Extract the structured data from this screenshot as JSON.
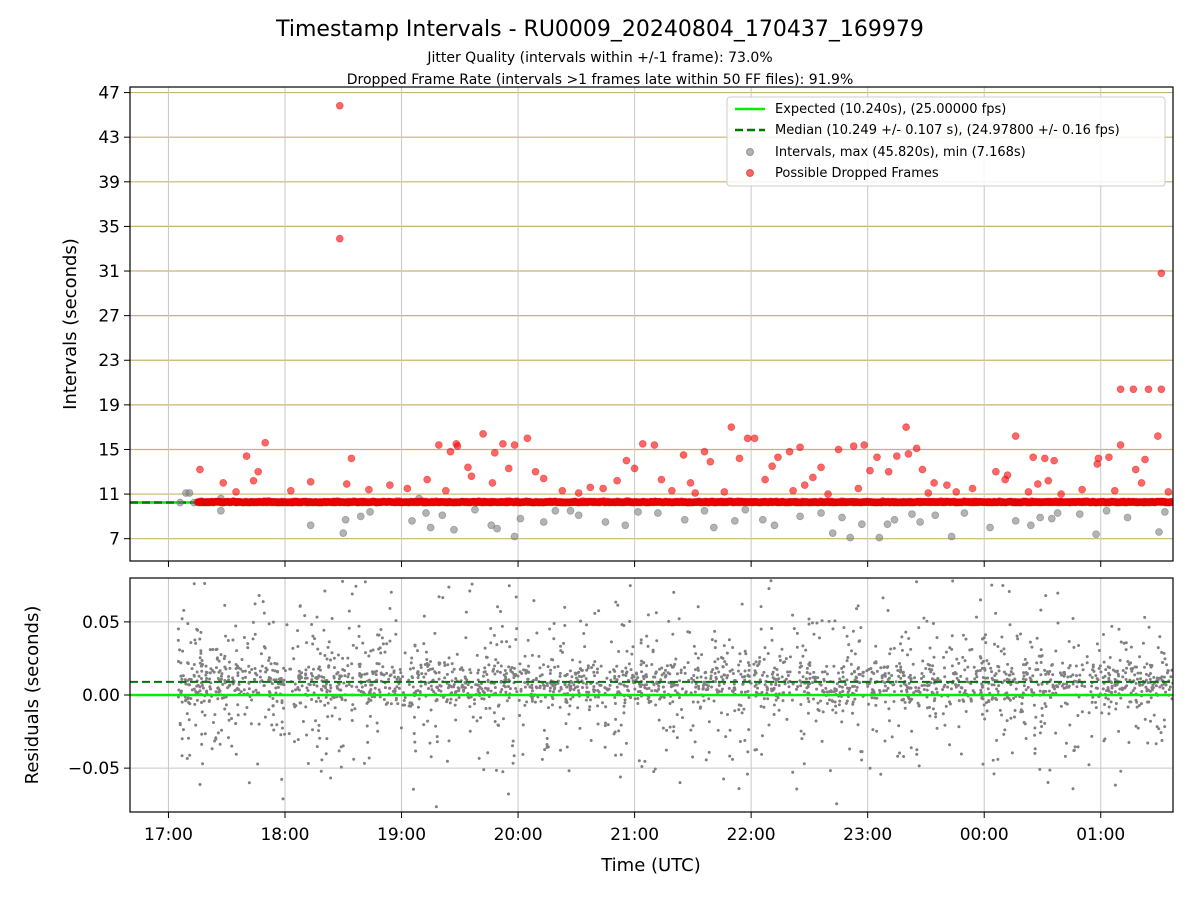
{
  "figure": {
    "title": "Timestamp Intervals - RU0009_20240804_170437_169979",
    "subtitle_1": "Jitter Quality (intervals within +/-1 frame): 73.0%",
    "subtitle_2": "Dropped Frame Rate (intervals >1 frames late within 50 FF files): 91.9%"
  },
  "colors": {
    "expected_line": "#00ee00",
    "median_line": "#007700",
    "intervals_points": "#808080",
    "dropped_points": "#ff0000",
    "top_grid": "#c8b46e",
    "vertical_grid": "#c8c8c8",
    "bottom_grid": "#c8c8c8"
  },
  "chart_data": [
    {
      "type": "scatter",
      "panel": "intervals",
      "ylabel": "Intervals (seconds)",
      "xlabel": "",
      "x_ticks": [
        "17:00",
        "18:00",
        "19:00",
        "20:00",
        "21:00",
        "22:00",
        "23:00",
        "00:00",
        "01:00"
      ],
      "x_range_hours": [
        16.67,
        25.62
      ],
      "y_ticks": [
        "7",
        "11",
        "15",
        "19",
        "23",
        "27",
        "31",
        "35",
        "39",
        "43",
        "47"
      ],
      "ylim": [
        5.0,
        47.5
      ],
      "grid": "on",
      "legend_position": "top-right",
      "legend": {
        "expected": "Expected (10.240s), (25.00000 fps)",
        "median": "Median (10.249 +/- 0.107 s), (24.97800 +/- 0.16 fps)",
        "intervals": "Intervals, max (45.820s), min (7.168s)",
        "dropped": "Possible Dropped Frames"
      },
      "expected_value": 10.24,
      "median_value": 10.249,
      "dropped_frames": [
        [
          18.47,
          45.82
        ],
        [
          18.47,
          33.9
        ],
        [
          25.52,
          30.8
        ],
        [
          25.17,
          20.4
        ],
        [
          25.28,
          20.4
        ],
        [
          25.41,
          20.4
        ],
        [
          25.52,
          20.4
        ],
        [
          21.83,
          17.0
        ],
        [
          23.33,
          17.0
        ],
        [
          19.7,
          16.4
        ],
        [
          20.08,
          16.0
        ],
        [
          21.97,
          16.0
        ],
        [
          22.03,
          16.0
        ],
        [
          24.27,
          16.2
        ],
        [
          25.49,
          16.2
        ],
        [
          17.83,
          15.6
        ],
        [
          19.32,
          15.4
        ],
        [
          19.47,
          15.5
        ],
        [
          19.87,
          15.5
        ],
        [
          21.07,
          15.5
        ],
        [
          21.17,
          15.4
        ],
        [
          22.42,
          15.2
        ],
        [
          22.75,
          15.0
        ],
        [
          22.88,
          15.3
        ],
        [
          22.97,
          15.4
        ],
        [
          23.42,
          15.1
        ],
        [
          25.17,
          15.4
        ],
        [
          19.48,
          15.3
        ],
        [
          19.97,
          15.4
        ],
        [
          17.67,
          14.4
        ],
        [
          18.57,
          14.2
        ],
        [
          19.42,
          14.8
        ],
        [
          19.8,
          14.7
        ],
        [
          21.42,
          14.5
        ],
        [
          21.6,
          14.8
        ],
        [
          21.9,
          14.2
        ],
        [
          22.23,
          14.3
        ],
        [
          22.33,
          14.8
        ],
        [
          23.08,
          14.3
        ],
        [
          23.25,
          14.4
        ],
        [
          23.35,
          14.6
        ],
        [
          24.42,
          14.3
        ],
        [
          24.52,
          14.2
        ],
        [
          24.6,
          14.0
        ],
        [
          24.98,
          14.2
        ],
        [
          25.07,
          14.3
        ],
        [
          25.38,
          14.1
        ],
        [
          17.27,
          13.2
        ],
        [
          17.77,
          13.0
        ],
        [
          19.57,
          13.4
        ],
        [
          19.92,
          13.3
        ],
        [
          20.15,
          13.0
        ],
        [
          20.93,
          14.0
        ],
        [
          21.0,
          13.3
        ],
        [
          21.65,
          13.9
        ],
        [
          22.18,
          13.5
        ],
        [
          22.6,
          13.4
        ],
        [
          23.02,
          13.1
        ],
        [
          23.18,
          13.0
        ],
        [
          23.47,
          13.2
        ],
        [
          24.1,
          13.0
        ],
        [
          24.2,
          12.7
        ],
        [
          24.97,
          13.7
        ],
        [
          25.3,
          13.2
        ],
        [
          17.47,
          12.0
        ],
        [
          17.73,
          12.2
        ],
        [
          18.22,
          12.1
        ],
        [
          18.53,
          11.9
        ],
        [
          19.22,
          12.3
        ],
        [
          19.6,
          12.6
        ],
        [
          19.78,
          12.0
        ],
        [
          20.22,
          12.4
        ],
        [
          20.62,
          11.6
        ],
        [
          20.85,
          12.2
        ],
        [
          21.23,
          12.3
        ],
        [
          21.48,
          12.0
        ],
        [
          22.12,
          12.3
        ],
        [
          22.46,
          11.8
        ],
        [
          22.53,
          12.5
        ],
        [
          23.57,
          12.0
        ],
        [
          23.68,
          11.8
        ],
        [
          23.9,
          11.5
        ],
        [
          24.18,
          12.3
        ],
        [
          24.46,
          11.9
        ],
        [
          24.55,
          12.2
        ],
        [
          24.84,
          11.4
        ],
        [
          25.35,
          12.0
        ],
        [
          25.58,
          11.2
        ],
        [
          18.05,
          11.3
        ],
        [
          18.9,
          11.8
        ],
        [
          19.38,
          11.3
        ],
        [
          19.05,
          11.5
        ],
        [
          20.38,
          11.3
        ],
        [
          20.73,
          11.5
        ],
        [
          21.32,
          11.3
        ],
        [
          21.77,
          11.2
        ],
        [
          22.36,
          11.3
        ],
        [
          22.92,
          11.5
        ],
        [
          23.76,
          11.2
        ],
        [
          24.38,
          11.2
        ],
        [
          25.12,
          11.3
        ],
        [
          17.58,
          11.2
        ],
        [
          18.72,
          11.4
        ],
        [
          20.52,
          11.1
        ],
        [
          21.52,
          11.1
        ],
        [
          22.66,
          11.0
        ],
        [
          23.52,
          11.1
        ],
        [
          24.66,
          11.0
        ]
      ],
      "intervals_below": [
        [
          17.15,
          11.1
        ],
        [
          17.18,
          11.1
        ],
        [
          17.45,
          10.6
        ],
        [
          17.45,
          9.5
        ],
        [
          18.22,
          8.2
        ],
        [
          18.5,
          7.5
        ],
        [
          18.52,
          8.7
        ],
        [
          18.65,
          9.0
        ],
        [
          18.73,
          9.4
        ],
        [
          19.09,
          8.6
        ],
        [
          19.21,
          9.3
        ],
        [
          19.25,
          8.0
        ],
        [
          19.35,
          9.1
        ],
        [
          19.45,
          7.8
        ],
        [
          19.63,
          9.6
        ],
        [
          19.77,
          8.2
        ],
        [
          19.82,
          7.9
        ],
        [
          19.97,
          7.2
        ],
        [
          20.02,
          8.8
        ],
        [
          20.22,
          8.5
        ],
        [
          20.32,
          9.5
        ],
        [
          20.52,
          9.1
        ],
        [
          20.75,
          8.5
        ],
        [
          20.92,
          8.2
        ],
        [
          21.03,
          9.4
        ],
        [
          21.2,
          9.3
        ],
        [
          21.43,
          8.7
        ],
        [
          21.6,
          9.5
        ],
        [
          21.68,
          8.0
        ],
        [
          21.86,
          8.6
        ],
        [
          22.1,
          8.7
        ],
        [
          22.2,
          8.2
        ],
        [
          22.42,
          9.0
        ],
        [
          22.6,
          9.3
        ],
        [
          22.7,
          7.5
        ],
        [
          22.78,
          8.9
        ],
        [
          22.85,
          7.1
        ],
        [
          22.95,
          8.3
        ],
        [
          23.1,
          7.1
        ],
        [
          23.17,
          8.3
        ],
        [
          23.23,
          8.7
        ],
        [
          23.38,
          9.2
        ],
        [
          23.45,
          8.5
        ],
        [
          23.58,
          9.1
        ],
        [
          23.72,
          7.2
        ],
        [
          23.83,
          9.3
        ],
        [
          24.05,
          8.0
        ],
        [
          24.27,
          8.6
        ],
        [
          24.4,
          8.2
        ],
        [
          24.58,
          8.8
        ],
        [
          24.63,
          9.3
        ],
        [
          24.82,
          9.2
        ],
        [
          24.96,
          7.4
        ],
        [
          25.05,
          9.5
        ],
        [
          25.23,
          8.9
        ],
        [
          25.5,
          7.6
        ],
        [
          25.55,
          9.4
        ],
        [
          24.48,
          8.9
        ],
        [
          20.45,
          9.5
        ],
        [
          19.15,
          10.6
        ],
        [
          21.95,
          9.6
        ]
      ]
    },
    {
      "type": "scatter",
      "panel": "residuals",
      "ylabel": "Residuals (seconds)",
      "xlabel": "Time (UTC)",
      "x_ticks": [
        "17:00",
        "18:00",
        "19:00",
        "20:00",
        "21:00",
        "22:00",
        "23:00",
        "00:00",
        "01:00"
      ],
      "x_range_hours": [
        16.67,
        25.62
      ],
      "y_ticks": [
        "0.05",
        "0.00",
        "−0.05"
      ],
      "ylim": [
        -0.08,
        0.08
      ],
      "grid": "on",
      "expected_value": 0.0,
      "median_value": 0.009,
      "points_start_hour": 17.08,
      "points_end_hour": 25.62,
      "point_count": 2600
    }
  ]
}
